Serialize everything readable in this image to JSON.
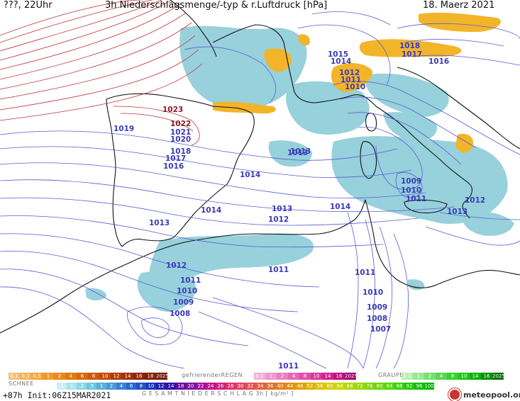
{
  "header": {
    "left": "???, 22Uhr",
    "title": "3h Niederschlagsmenge/-typ & r.Luftdruck [hPa]",
    "date": "18. Maerz 2021"
  },
  "map": {
    "land_color": "#ffffff",
    "coast_color": "#000000",
    "isobar_color": "#5a5ad6",
    "high_isobar_color": "#c0303a",
    "rain_color": "#7fc8d8",
    "snow_color": "#f0b020",
    "pressure_labels": [
      {
        "text": "1023",
        "high": true
      },
      {
        "text": "1022",
        "high": true
      },
      {
        "text": "1021",
        "high": false
      },
      {
        "text": "1020",
        "high": false
      },
      {
        "text": "1019",
        "high": false
      },
      {
        "text": "1018",
        "high": false
      },
      {
        "text": "1017",
        "high": false
      },
      {
        "text": "1016",
        "high": false
      },
      {
        "text": "1014",
        "high": false
      },
      {
        "text": "1014",
        "high": false
      },
      {
        "text": "1013",
        "high": false
      },
      {
        "text": "1013",
        "high": false
      },
      {
        "text": "1013",
        "high": false
      },
      {
        "text": "1012",
        "high": false
      },
      {
        "text": "1014",
        "high": false
      },
      {
        "text": "1012",
        "high": false
      },
      {
        "text": "1011",
        "high": false
      },
      {
        "text": "1010",
        "high": false
      },
      {
        "text": "1009",
        "high": false
      },
      {
        "text": "1008",
        "high": false
      },
      {
        "text": "1011",
        "high": false
      },
      {
        "text": "1011",
        "high": false
      },
      {
        "text": "1010",
        "high": false
      },
      {
        "text": "1009",
        "high": false
      },
      {
        "text": "1008",
        "high": false
      },
      {
        "text": "1007",
        "high": false
      },
      {
        "text": "1011",
        "high": false
      },
      {
        "text": "1009",
        "high": false
      },
      {
        "text": "1010",
        "high": false
      },
      {
        "text": "1011",
        "high": false
      },
      {
        "text": "1013",
        "high": false
      },
      {
        "text": "1012",
        "high": false
      },
      {
        "text": "1015",
        "high": false
      },
      {
        "text": "1014",
        "high": false
      },
      {
        "text": "1012",
        "high": false
      },
      {
        "text": "1011",
        "high": false
      },
      {
        "text": "1010",
        "high": false
      },
      {
        "text": "1018",
        "high": false
      },
      {
        "text": "1017",
        "high": false
      },
      {
        "text": "1016",
        "high": false
      },
      {
        "text": "1013",
        "high": false
      }
    ]
  },
  "legend": {
    "snow_scale": {
      "values": [
        "0.1",
        "0.2",
        "0.5",
        "1",
        "2",
        "4",
        "6",
        "8",
        "10",
        "12",
        "14",
        "16",
        "18",
        "2025+"
      ],
      "colors": [
        "#f5c07a",
        "#f2b45a",
        "#f0a840",
        "#ee9a2a",
        "#e88a1a",
        "#e07a10",
        "#d66a0a",
        "#cc5a08",
        "#c04a06",
        "#b03c05",
        "#a03004",
        "#902604",
        "#802004",
        "#701a04"
      ],
      "caption": "SCHNEE"
    },
    "freezing_rain": {
      "caption": "gefrierenderREGEN",
      "values": [
        "0.1",
        "1",
        "2",
        "4",
        "8",
        "10",
        "14",
        "16",
        "2025+"
      ],
      "colors": [
        "#f5b0d8",
        "#f098cc",
        "#ea80c0",
        "#e468b4",
        "#de50a8",
        "#d8389c",
        "#d22090",
        "#c01080",
        "#a00070"
      ]
    },
    "graupel": {
      "caption": "GRAUPEL",
      "values": [
        "0.1",
        "1",
        "2",
        "4",
        "8",
        "10",
        "14",
        "16",
        "2025+"
      ],
      "colors": [
        "#b8f0b0",
        "#98e890",
        "#78e070",
        "#58d850",
        "#38d030",
        "#20c818",
        "#10b010",
        "#089008",
        "#007000"
      ]
    },
    "total": {
      "values": [
        ".1",
        "1",
        ".2",
        ".5",
        "1",
        "2",
        "4",
        "6",
        "8",
        "10",
        "12",
        "14",
        "18",
        "20",
        "22",
        "24",
        "26",
        "28",
        "30",
        "32",
        "34",
        "36",
        "40",
        "44",
        "48",
        "52",
        "56",
        "60",
        "64",
        "68",
        "72",
        "76",
        "80",
        "84",
        "88",
        "92",
        "96",
        "100"
      ],
      "colors": [
        "#c8f0f0",
        "#a8e4ec",
        "#88d8e8",
        "#68c8e0",
        "#58b0dc",
        "#4898d8",
        "#3880d4",
        "#2868d0",
        "#2050c8",
        "#1838c0",
        "#2020b0",
        "#3010a8",
        "#6010a0",
        "#8010a0",
        "#a010a0",
        "#c01090",
        "#d02080",
        "#e03070",
        "#e04060",
        "#e05050",
        "#e06040",
        "#e07030",
        "#e08020",
        "#e09010",
        "#e0a000",
        "#e0b000",
        "#e0c000",
        "#d8d000",
        "#c8d800",
        "#b0d800",
        "#98d800",
        "#80d800",
        "#68d800",
        "#50d800",
        "#38d000",
        "#20c800",
        "#10c000",
        "#00b800"
      ],
      "caption": "G E S A M T N I E D E R S C H L A G   3h   [ kg/m² ]"
    }
  },
  "footer": {
    "run": "+87h  Init:06Z15MAR2021",
    "logo": "meteopool.org"
  }
}
